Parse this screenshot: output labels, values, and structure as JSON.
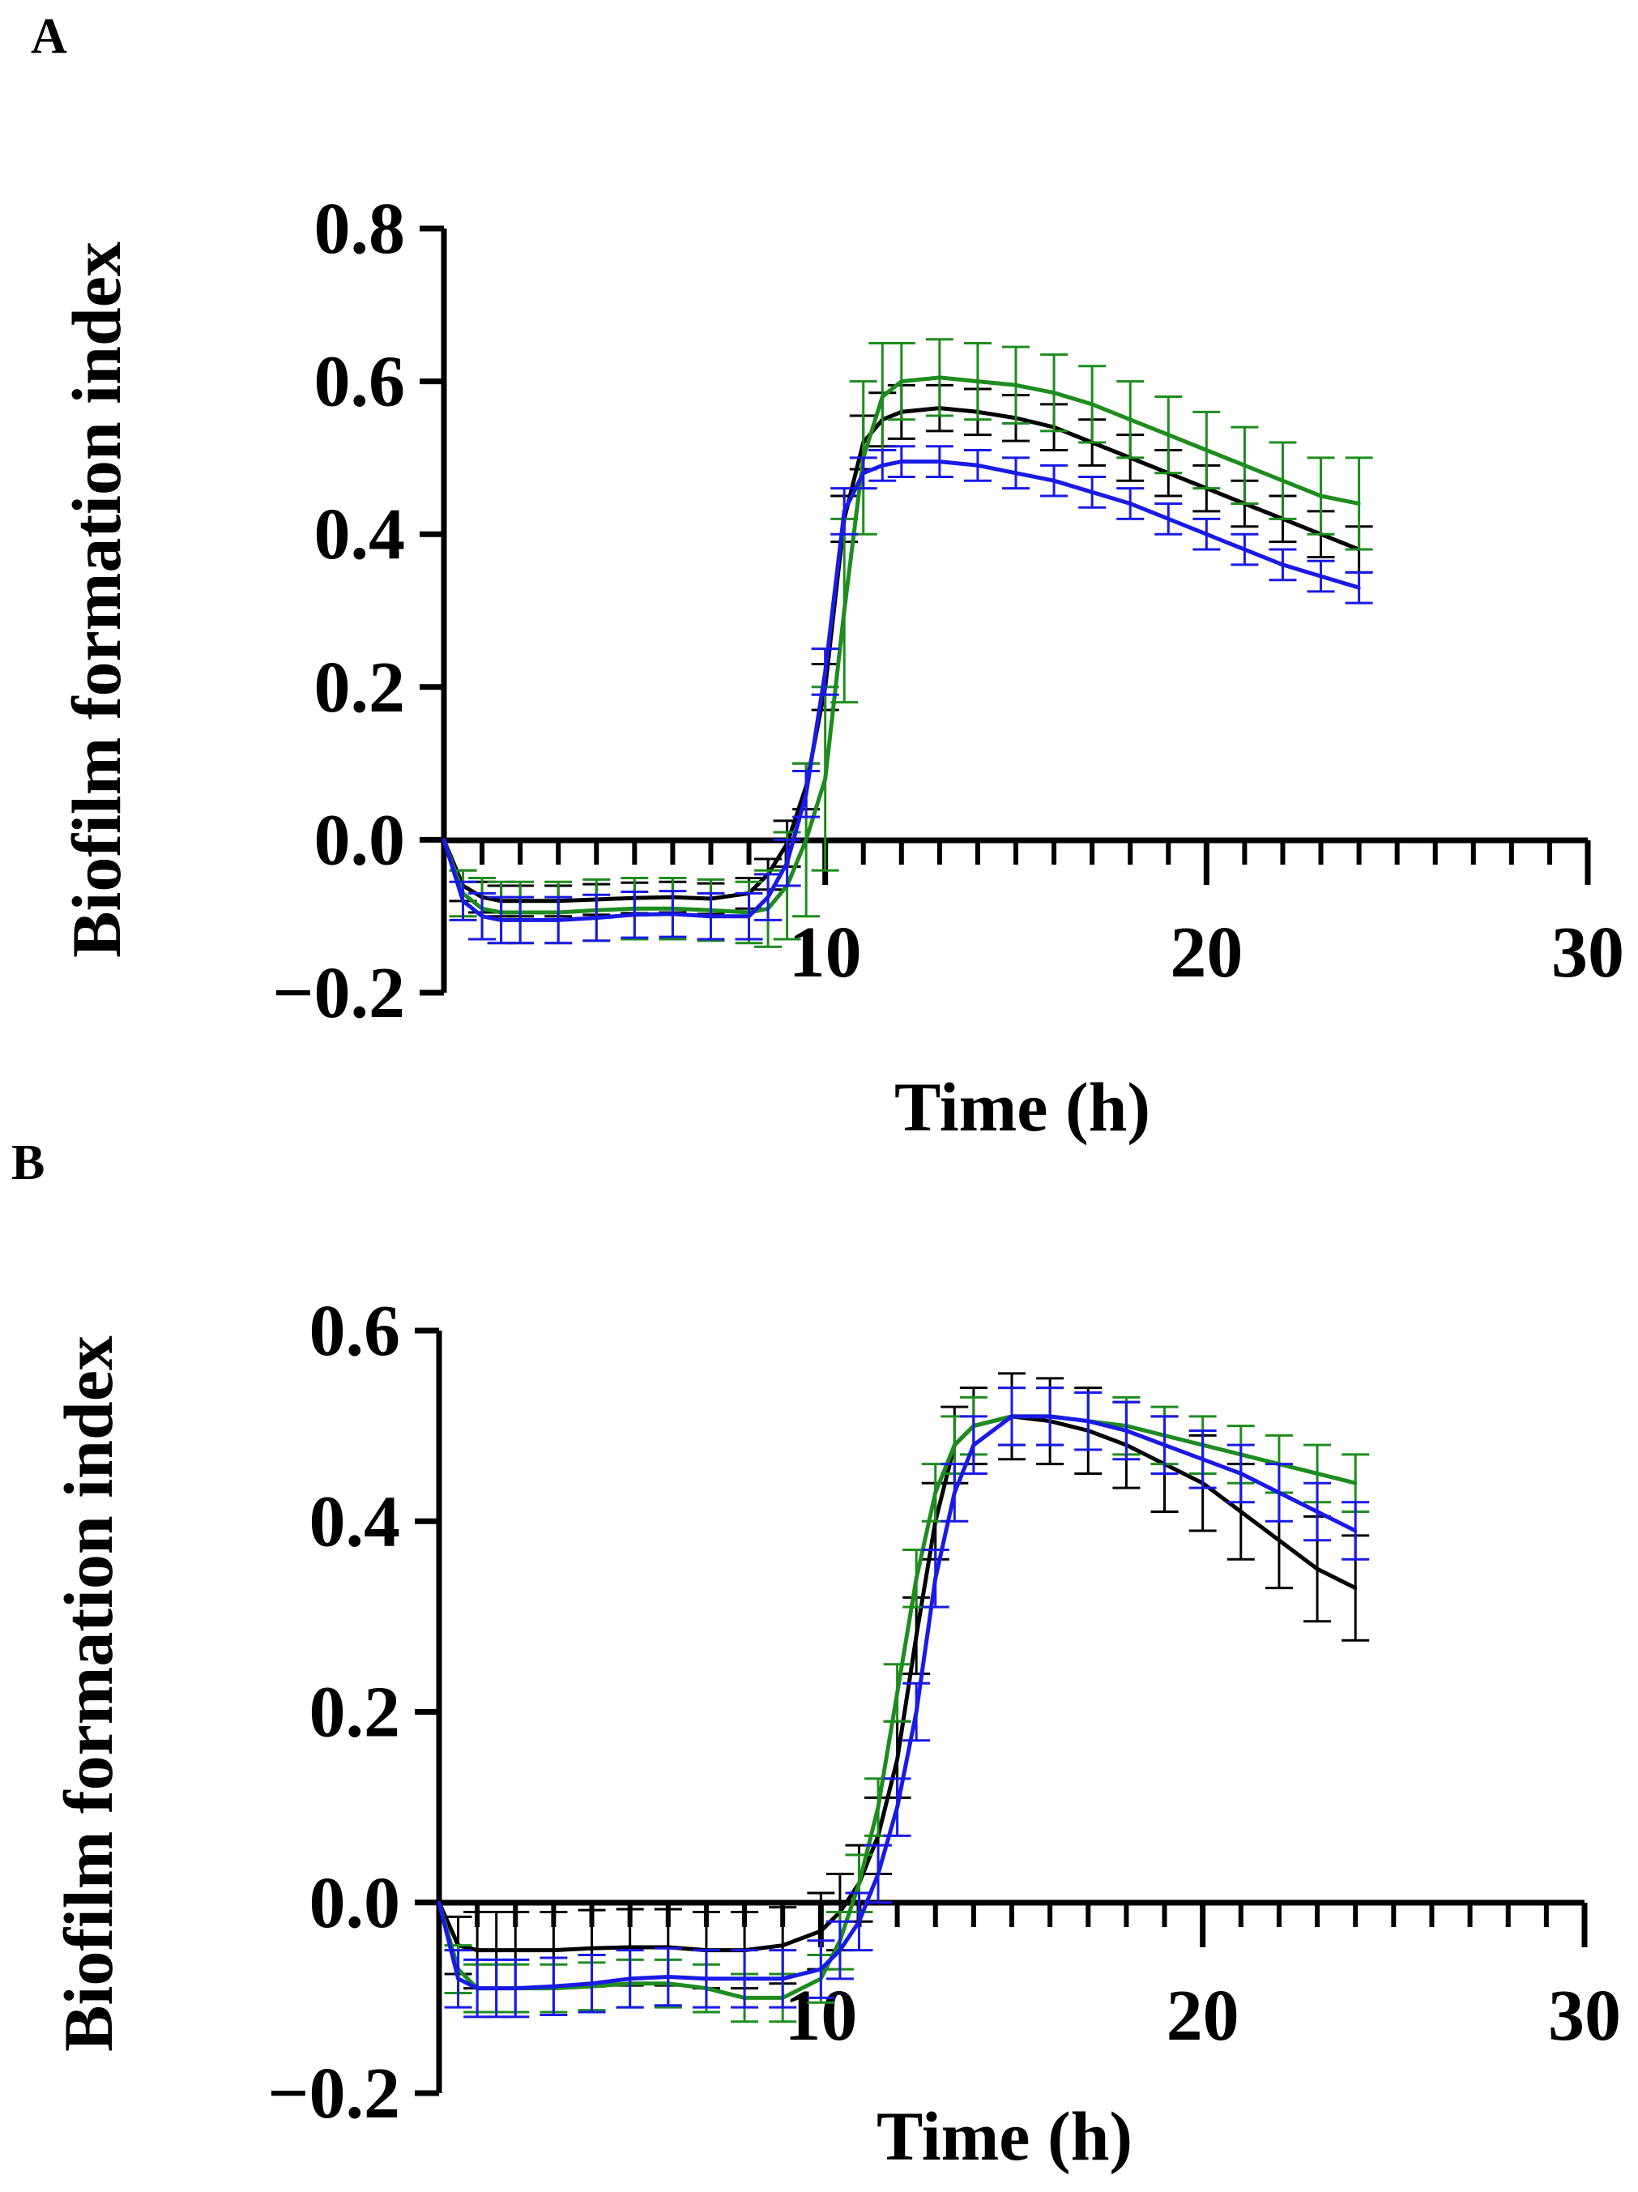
{
  "chart_data": [
    {
      "panel": "A",
      "type": "line",
      "xlabel": "Time (h)",
      "ylabel": "Biofilm formation index",
      "xlim": [
        0,
        30
      ],
      "ylim": [
        -0.2,
        0.8
      ],
      "xticks": [
        10,
        20,
        30
      ],
      "yticks": [
        -0.2,
        0.0,
        0.2,
        0.4,
        0.6,
        0.8
      ],
      "x": [
        0,
        0.5,
        1,
        1.5,
        2,
        3,
        4,
        5,
        6,
        7,
        8,
        8.5,
        9,
        9.5,
        10,
        10.5,
        11,
        11.5,
        12,
        13,
        14,
        15,
        16,
        17,
        18,
        19,
        20,
        21,
        22,
        23,
        24
      ],
      "series": [
        {
          "name": "black",
          "color": "#000000",
          "values": [
            0,
            -0.06,
            -0.075,
            -0.08,
            -0.08,
            -0.08,
            -0.078,
            -0.076,
            -0.075,
            -0.077,
            -0.07,
            -0.045,
            -0.005,
            0.07,
            0.2,
            0.42,
            0.52,
            0.55,
            0.56,
            0.565,
            0.56,
            0.552,
            0.54,
            0.52,
            0.5,
            0.48,
            0.46,
            0.44,
            0.42,
            0.4,
            0.38
          ],
          "errors": [
            0,
            0.02,
            0.02,
            0.02,
            0.02,
            0.02,
            0.02,
            0.02,
            0.02,
            0.02,
            0.02,
            0.02,
            0.03,
            0.03,
            0.03,
            0.03,
            0.035,
            0.035,
            0.035,
            0.03,
            0.03,
            0.03,
            0.03,
            0.03,
            0.03,
            0.03,
            0.03,
            0.03,
            0.03,
            0.03,
            0.03
          ]
        },
        {
          "name": "green",
          "color": "#1e8c1e",
          "values": [
            0,
            -0.07,
            -0.09,
            -0.095,
            -0.095,
            -0.095,
            -0.092,
            -0.09,
            -0.09,
            -0.092,
            -0.095,
            -0.09,
            -0.06,
            0,
            0.08,
            0.3,
            0.5,
            0.58,
            0.6,
            0.605,
            0.6,
            0.595,
            0.585,
            0.57,
            0.55,
            0.53,
            0.51,
            0.49,
            0.47,
            0.45,
            0.44
          ],
          "errors": [
            0,
            0.03,
            0.04,
            0.04,
            0.04,
            0.04,
            0.04,
            0.04,
            0.04,
            0.04,
            0.04,
            0.05,
            0.07,
            0.1,
            0.12,
            0.12,
            0.1,
            0.07,
            0.05,
            0.05,
            0.05,
            0.05,
            0.05,
            0.05,
            0.05,
            0.05,
            0.05,
            0.05,
            0.05,
            0.05,
            0.06
          ]
        },
        {
          "name": "blue",
          "color": "#1a1ae6",
          "values": [
            0,
            -0.08,
            -0.1,
            -0.105,
            -0.105,
            -0.105,
            -0.102,
            -0.098,
            -0.097,
            -0.1,
            -0.1,
            -0.075,
            -0.03,
            0.06,
            0.22,
            0.43,
            0.48,
            0.49,
            0.495,
            0.495,
            0.49,
            0.48,
            0.47,
            0.455,
            0.44,
            0.42,
            0.4,
            0.38,
            0.36,
            0.345,
            0.33
          ],
          "errors": [
            0,
            0.025,
            0.03,
            0.03,
            0.03,
            0.03,
            0.03,
            0.03,
            0.03,
            0.03,
            0.03,
            0.03,
            0.03,
            0.03,
            0.03,
            0.03,
            0.02,
            0.02,
            0.02,
            0.02,
            0.02,
            0.02,
            0.02,
            0.02,
            0.02,
            0.02,
            0.02,
            0.02,
            0.02,
            0.02,
            0.02
          ]
        }
      ]
    },
    {
      "panel": "B",
      "type": "line",
      "xlabel": "Time (h)",
      "ylabel": "Biofilm formation index",
      "xlim": [
        0,
        30
      ],
      "ylim": [
        -0.2,
        0.6
      ],
      "xticks": [
        10,
        20,
        30
      ],
      "yticks": [
        -0.2,
        0.0,
        0.2,
        0.4,
        0.6
      ],
      "x": [
        0,
        0.5,
        1,
        1.5,
        2,
        3,
        4,
        5,
        6,
        7,
        8,
        9,
        10,
        10.5,
        11,
        11.5,
        12,
        12.5,
        13,
        13.5,
        14,
        15,
        16,
        17,
        18,
        19,
        20,
        21,
        22,
        23,
        24
      ],
      "series": [
        {
          "name": "black",
          "color": "#000000",
          "values": [
            0,
            -0.045,
            -0.05,
            -0.05,
            -0.05,
            -0.05,
            -0.048,
            -0.047,
            -0.047,
            -0.05,
            -0.05,
            -0.045,
            -0.03,
            -0.01,
            0.02,
            0.07,
            0.15,
            0.28,
            0.4,
            0.48,
            0.5,
            0.51,
            0.505,
            0.495,
            0.48,
            0.46,
            0.44,
            0.41,
            0.38,
            0.35,
            0.33
          ],
          "errors": [
            0,
            0.03,
            0.04,
            0.04,
            0.04,
            0.04,
            0.04,
            0.04,
            0.04,
            0.04,
            0.04,
            0.04,
            0.04,
            0.04,
            0.04,
            0.04,
            0.04,
            0.04,
            0.04,
            0.04,
            0.04,
            0.045,
            0.045,
            0.045,
            0.045,
            0.05,
            0.05,
            0.05,
            0.05,
            0.055,
            0.055
          ]
        },
        {
          "name": "green",
          "color": "#1e8c1e",
          "values": [
            0,
            -0.07,
            -0.09,
            -0.09,
            -0.09,
            -0.09,
            -0.088,
            -0.085,
            -0.085,
            -0.09,
            -0.1,
            -0.1,
            -0.08,
            -0.04,
            0.02,
            0.1,
            0.22,
            0.34,
            0.43,
            0.48,
            0.5,
            0.51,
            0.51,
            0.505,
            0.5,
            0.49,
            0.48,
            0.47,
            0.46,
            0.45,
            0.44
          ],
          "errors": [
            0,
            0.025,
            0.025,
            0.025,
            0.025,
            0.025,
            0.025,
            0.025,
            0.025,
            0.025,
            0.025,
            0.025,
            0.025,
            0.03,
            0.03,
            0.03,
            0.03,
            0.03,
            0.03,
            0.03,
            0.03,
            0.03,
            0.03,
            0.03,
            0.03,
            0.03,
            0.03,
            0.03,
            0.03,
            0.03,
            0.03
          ]
        },
        {
          "name": "blue",
          "color": "#1a1ae6",
          "values": [
            0,
            -0.08,
            -0.09,
            -0.09,
            -0.09,
            -0.088,
            -0.085,
            -0.08,
            -0.078,
            -0.08,
            -0.08,
            -0.08,
            -0.07,
            -0.05,
            -0.02,
            0.03,
            0.1,
            0.2,
            0.34,
            0.43,
            0.48,
            0.51,
            0.51,
            0.505,
            0.495,
            0.48,
            0.465,
            0.45,
            0.43,
            0.41,
            0.39
          ],
          "errors": [
            0,
            0.03,
            0.03,
            0.03,
            0.03,
            0.03,
            0.03,
            0.03,
            0.03,
            0.03,
            0.03,
            0.03,
            0.03,
            0.03,
            0.03,
            0.03,
            0.03,
            0.03,
            0.03,
            0.03,
            0.03,
            0.03,
            0.03,
            0.03,
            0.03,
            0.03,
            0.03,
            0.03,
            0.03,
            0.03,
            0.03
          ]
        }
      ]
    }
  ]
}
